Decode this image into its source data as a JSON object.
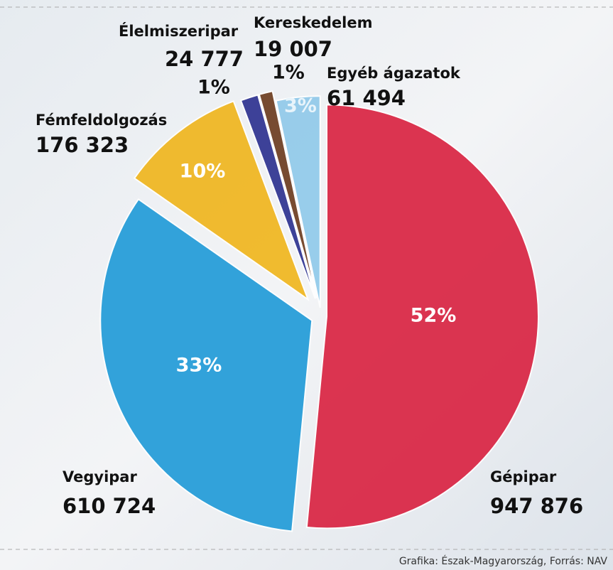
{
  "chart_data": {
    "type": "pie",
    "categories": [
      "Gépipar",
      "Vegyipar",
      "Fémfeldolgozás",
      "Élelmiszeripar",
      "Kereskedelem",
      "Egyéb ágazatok"
    ],
    "values": [
      947876,
      610724,
      176323,
      24777,
      19007,
      61494
    ],
    "value_labels": [
      "947 876",
      "610 724",
      "176 323",
      "24 777",
      "19 007",
      "61 494"
    ],
    "percent_labels": [
      "52%",
      "33%",
      "10%",
      "1%",
      "1%",
      "3%"
    ],
    "colors": [
      "#d9203f",
      "#1e9ad8",
      "#f0b51a",
      "#2a2f8f",
      "#6b3a1c",
      "#8fc9ea"
    ],
    "source": "Grafika: Észak-Magyarország, Forrás: NAV"
  }
}
